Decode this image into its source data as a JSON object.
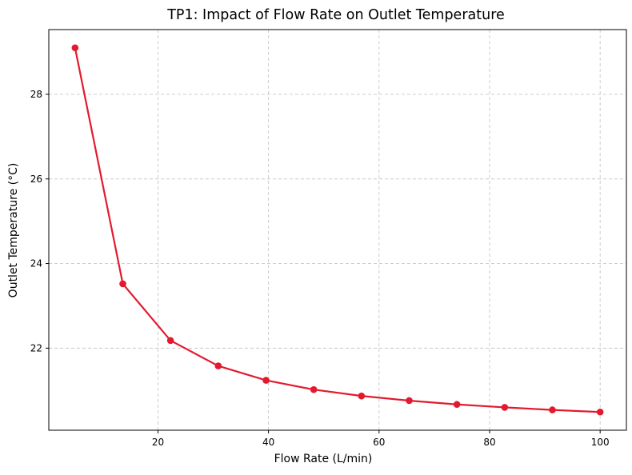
{
  "chart_data": {
    "type": "line",
    "title": "TP1: Impact of Flow Rate on Outlet Temperature",
    "xlabel": "Flow Rate (L/min)",
    "ylabel": "Outlet Temperature (°C)",
    "xlim": [
      0.25,
      104.75
    ],
    "ylim": [
      20.06,
      29.53
    ],
    "x_ticks": [
      20,
      40,
      60,
      80,
      100
    ],
    "y_ticks": [
      22,
      24,
      26,
      28
    ],
    "grid": true,
    "grid_style": "dashed",
    "legend": null,
    "colors": {
      "series": "#e31a2f",
      "grid": "#c8c8c8"
    },
    "series": [
      {
        "marker": "circle",
        "x": [
          5.0,
          13.64,
          22.27,
          30.91,
          39.55,
          48.18,
          56.82,
          65.45,
          74.09,
          82.73,
          91.36,
          100.0
        ],
        "y": [
          29.1,
          23.52,
          22.18,
          21.58,
          21.24,
          21.02,
          20.87,
          20.76,
          20.67,
          20.6,
          20.54,
          20.49
        ]
      }
    ]
  }
}
